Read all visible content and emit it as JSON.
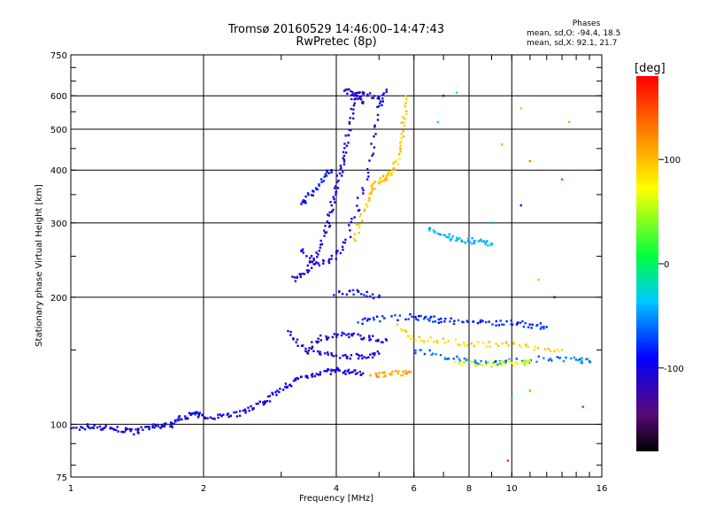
{
  "header": {
    "title_line1": "Tromsø 20160529 14:46:00–14:47:43",
    "title_line2": "RwPretec (8p)"
  },
  "phases": {
    "heading": "Phases",
    "o_line": "mean, sd,O: -94.4, 18.5",
    "x_line": "mean, sd,X:  92.1, 21.7"
  },
  "colorbar": {
    "unit": "[deg]",
    "ticks": [
      "100",
      "0",
      "-100"
    ],
    "tick_values": [
      100,
      0,
      -100
    ],
    "range": [
      -180,
      180
    ],
    "colormap": "rainbow (black-purple-blue-cyan-green-yellow-red)"
  },
  "chart_data": {
    "type": "scatter",
    "title": "Tromsø 20160529 14:46:00–14:47:43",
    "subtitle": "RwPretec (8p)",
    "xlabel": "Frequency [MHz]",
    "ylabel": "Stationary phase Virtual Height [km]",
    "x_scale": "log",
    "y_scale": "log",
    "xlim": [
      1,
      16
    ],
    "ylim": [
      75,
      750
    ],
    "x_ticks": [
      1,
      2,
      4,
      6,
      8,
      10,
      16
    ],
    "x_tick_labels": [
      "1",
      "2",
      "4",
      "6",
      "8",
      "10",
      "16"
    ],
    "y_ticks": [
      75,
      100,
      200,
      300,
      400,
      500,
      600,
      750
    ],
    "y_tick_labels": [
      "75",
      "100",
      "200",
      "300",
      "400",
      "500",
      "600",
      "750"
    ],
    "grid": true,
    "color_variable": "phase [deg]",
    "traces": [
      {
        "name": "",
        "phase": -100,
        "points": [
          [
            1.0,
            97
          ],
          [
            1.1,
            99
          ],
          [
            1.2,
            98
          ],
          [
            1.3,
            97
          ],
          [
            1.4,
            96
          ],
          [
            1.5,
            98
          ],
          [
            1.6,
            99
          ],
          [
            1.7,
            100
          ],
          [
            1.8,
            104
          ],
          [
            1.9,
            106
          ],
          [
            2.0,
            104
          ],
          [
            2.2,
            105
          ],
          [
            2.4,
            106
          ],
          [
            2.6,
            110
          ],
          [
            2.8,
            114
          ],
          [
            3.0,
            120
          ],
          [
            3.2,
            127
          ],
          [
            3.5,
            131
          ],
          [
            3.8,
            133
          ],
          [
            4.0,
            134
          ],
          [
            4.3,
            133
          ],
          [
            4.6,
            132
          ]
        ]
      },
      {
        "name": "",
        "phase": -110,
        "points": [
          [
            3.1,
            165
          ],
          [
            3.4,
            150
          ],
          [
            3.7,
            160
          ],
          [
            4.0,
            163
          ],
          [
            4.4,
            162
          ],
          [
            4.8,
            160
          ],
          [
            5.2,
            158
          ]
        ]
      },
      {
        "name": "",
        "phase": -105,
        "points": [
          [
            3.4,
            150
          ],
          [
            3.8,
            146
          ],
          [
            4.2,
            145
          ],
          [
            4.6,
            145
          ],
          [
            5.0,
            147
          ]
        ]
      },
      {
        "name": "",
        "phase": -110,
        "points": [
          [
            3.2,
            220
          ],
          [
            3.4,
            230
          ],
          [
            3.6,
            250
          ],
          [
            3.8,
            290
          ],
          [
            3.9,
            320
          ],
          [
            4.0,
            360
          ],
          [
            4.1,
            400
          ],
          [
            4.2,
            450
          ],
          [
            4.3,
            520
          ],
          [
            4.4,
            600
          ],
          [
            4.6,
            610
          ],
          [
            5.0,
            590
          ]
        ]
      },
      {
        "name": "",
        "phase": -100,
        "points": [
          [
            3.3,
            260
          ],
          [
            3.6,
            240
          ],
          [
            3.9,
            245
          ],
          [
            4.2,
            270
          ],
          [
            4.5,
            330
          ],
          [
            4.8,
            430
          ],
          [
            5.0,
            560
          ],
          [
            5.2,
            620
          ]
        ]
      },
      {
        "name": "",
        "phase": -90,
        "points": [
          [
            3.3,
            330
          ],
          [
            3.5,
            350
          ],
          [
            3.7,
            380
          ],
          [
            3.9,
            400
          ]
        ]
      },
      {
        "name": "",
        "phase": -110,
        "points": [
          [
            4.2,
            620
          ],
          [
            4.4,
            600
          ],
          [
            4.6,
            580
          ]
        ]
      },
      {
        "name": "",
        "phase": 95,
        "points": [
          [
            4.4,
            270
          ],
          [
            4.6,
            320
          ],
          [
            4.8,
            360
          ],
          [
            5.0,
            380
          ],
          [
            5.2,
            385
          ],
          [
            5.4,
            400
          ],
          [
            5.6,
            450
          ],
          [
            5.7,
            520
          ],
          [
            5.75,
            600
          ]
        ]
      },
      {
        "name": "",
        "phase": 110,
        "points": [
          [
            4.8,
            130
          ],
          [
            5.1,
            131
          ],
          [
            5.5,
            132
          ],
          [
            5.9,
            133
          ]
        ]
      },
      {
        "name": "",
        "phase": 90,
        "points": [
          [
            5.5,
            170
          ],
          [
            6.0,
            160
          ],
          [
            6.8,
            158
          ],
          [
            8.0,
            155
          ],
          [
            9.5,
            155
          ],
          [
            11.0,
            152
          ],
          [
            13.0,
            150
          ]
        ]
      },
      {
        "name": "",
        "phase": -60,
        "points": [
          [
            6.0,
            150
          ],
          [
            7.0,
            145
          ],
          [
            8.0,
            142
          ],
          [
            9.0,
            140
          ],
          [
            10.0,
            141
          ],
          [
            12.0,
            143
          ],
          [
            14.0,
            142
          ],
          [
            15.0,
            141
          ]
        ]
      },
      {
        "name": "",
        "phase": 60,
        "points": [
          [
            7.5,
            140
          ],
          [
            8.5,
            138
          ],
          [
            9.5,
            139
          ],
          [
            10.5,
            140
          ],
          [
            11.0,
            141
          ]
        ]
      },
      {
        "name": "",
        "phase": -40,
        "points": [
          [
            6.5,
            290
          ],
          [
            7.0,
            280
          ],
          [
            7.5,
            275
          ],
          [
            8.0,
            272
          ],
          [
            8.5,
            270
          ],
          [
            9.0,
            268
          ]
        ]
      },
      {
        "name": "",
        "phase": -80,
        "points": [
          [
            4.5,
            175
          ],
          [
            5.0,
            178
          ],
          [
            6.0,
            180
          ],
          [
            6.5,
            178
          ],
          [
            7.0,
            176
          ],
          [
            8.0,
            175
          ],
          [
            9.0,
            174
          ],
          [
            10.0,
            174
          ],
          [
            11.0,
            172
          ],
          [
            12.0,
            170
          ]
        ]
      },
      {
        "name": "",
        "phase": -90,
        "points": [
          [
            4.0,
            205
          ],
          [
            4.5,
            205
          ],
          [
            5.0,
            200
          ]
        ]
      }
    ],
    "scattered_points": [
      {
        "x": 7.0,
        "y": 600,
        "phase": -90
      },
      {
        "x": 7.5,
        "y": 610,
        "phase": 0
      },
      {
        "x": 6.8,
        "y": 520,
        "phase": -10
      },
      {
        "x": 9.5,
        "y": 460,
        "phase": 110
      },
      {
        "x": 10.5,
        "y": 560,
        "phase": 100
      },
      {
        "x": 11.0,
        "y": 420,
        "phase": 130
      },
      {
        "x": 10.5,
        "y": 330,
        "phase": -90
      },
      {
        "x": 11.5,
        "y": 220,
        "phase": 100
      },
      {
        "x": 12.5,
        "y": 200,
        "phase": -100
      },
      {
        "x": 13.0,
        "y": 380,
        "phase": 150
      },
      {
        "x": 13.5,
        "y": 520,
        "phase": 110
      },
      {
        "x": 9.0,
        "y": 300,
        "phase": -40
      },
      {
        "x": 11.0,
        "y": 120,
        "phase": 120
      },
      {
        "x": 14.5,
        "y": 110,
        "phase": 160
      },
      {
        "x": 10.0,
        "y": 115,
        "phase": -20
      },
      {
        "x": 9.8,
        "y": 82,
        "phase": 160
      }
    ]
  }
}
